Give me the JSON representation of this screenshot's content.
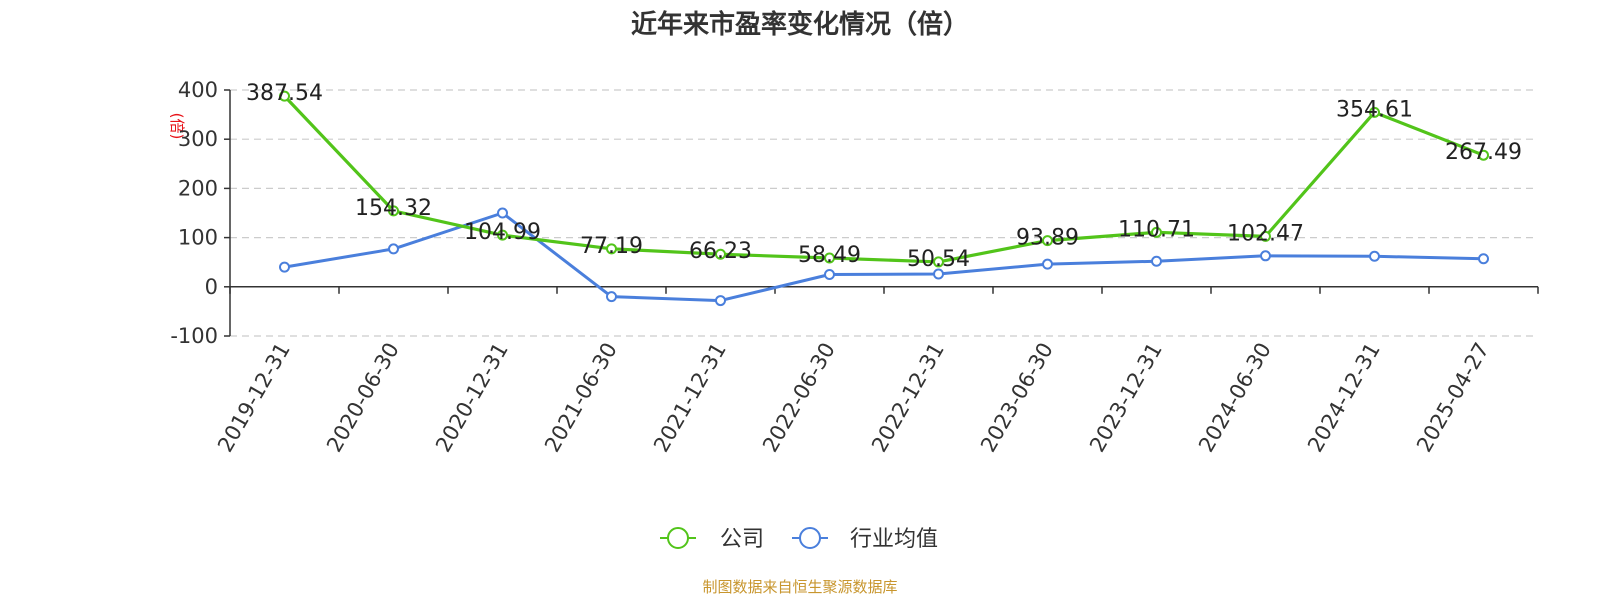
{
  "chart_data": {
    "type": "line",
    "title": "近年来市盈率变化情况（倍）",
    "ylabel": "(倍)",
    "xlabel": "",
    "categories": [
      "2019-12-31",
      "2020-06-30",
      "2020-12-31",
      "2021-06-30",
      "2021-12-31",
      "2022-06-30",
      "2022-12-31",
      "2023-06-30",
      "2023-12-31",
      "2024-06-30",
      "2024-12-31",
      "2025-04-27"
    ],
    "ylim": [
      -100,
      400
    ],
    "yticks": [
      "400",
      "300",
      "200",
      "100",
      "0",
      "-100"
    ],
    "grid": true,
    "legend_position": "bottom",
    "series": [
      {
        "name": "公司",
        "color": "#52c41a",
        "values": [
          387.54,
          154.32,
          104.99,
          77.19,
          66.23,
          58.49,
          50.54,
          93.89,
          110.71,
          102.47,
          354.61,
          267.49
        ],
        "labels": [
          "387.54",
          "154.32",
          "104.99",
          "77.19",
          "66.23",
          "58.49",
          "50.54",
          "93.89",
          "110.71",
          "102.47",
          "354.61",
          "267.49"
        ]
      },
      {
        "name": "行业均值",
        "color": "#4a7fdc",
        "values": [
          40,
          77,
          150,
          -20,
          -28,
          25,
          26,
          46,
          52,
          63,
          62,
          57
        ]
      }
    ],
    "source": "制图数据来自恒生聚源数据库"
  }
}
